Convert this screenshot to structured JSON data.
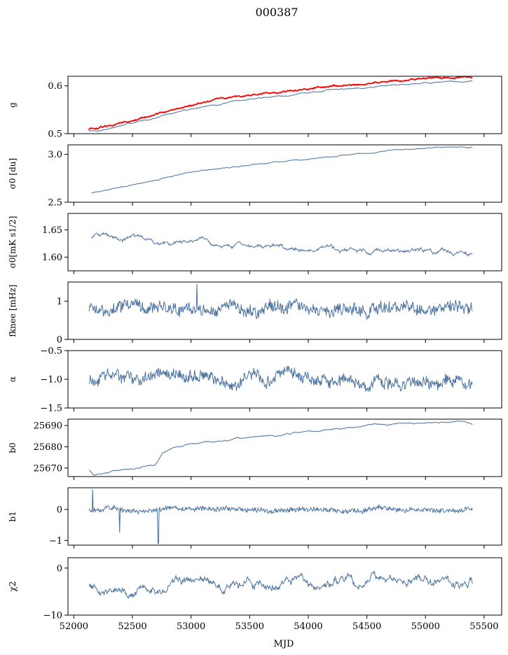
{
  "figure": {
    "title": "000387",
    "xlabel": "MJD"
  },
  "colors": {
    "series": "#4c72a0",
    "reference": "#ff0000"
  },
  "chart_data": [
    {
      "type": "line",
      "key": "g",
      "ylabel": "g",
      "ylim": [
        0.5,
        0.62
      ],
      "yticks": [
        "0.5",
        "0.6"
      ],
      "ytick_values": [
        0.5,
        0.6
      ],
      "series": [
        {
          "name": "",
          "color": "#4c72a0",
          "noise": 0.0007,
          "noise_hf": 0.0003,
          "x": [
            52125,
            52200,
            52500,
            53000,
            53500,
            54000,
            54500,
            55000,
            55400
          ],
          "y": [
            0.507,
            0.506,
            0.522,
            0.552,
            0.572,
            0.586,
            0.598,
            0.607,
            0.61
          ]
        },
        {
          "name": "",
          "color": "#ff0000",
          "noise": 0.001,
          "noise_hf": 0.0006,
          "x": [
            52125,
            52200,
            52500,
            53000,
            53500,
            54000,
            54500,
            55000,
            55400
          ],
          "y": [
            0.51,
            0.509,
            0.527,
            0.56,
            0.58,
            0.594,
            0.606,
            0.615,
            0.618
          ]
        }
      ]
    },
    {
      "type": "line",
      "key": "sigma0_du",
      "ylabel": "σ0 [du]",
      "ylim": [
        2.5,
        3.1
      ],
      "yticks": [
        "2.5",
        "3.0"
      ],
      "ytick_values": [
        2.5,
        3.0
      ],
      "series": [
        {
          "name": "",
          "color": "#4c72a0",
          "noise": 0.003,
          "noise_hf": 0.001,
          "x": [
            52150,
            52500,
            53000,
            53500,
            54000,
            54500,
            55000,
            55300,
            55400
          ],
          "y": [
            2.6,
            2.68,
            2.82,
            2.89,
            2.95,
            3.02,
            3.06,
            3.08,
            3.07
          ]
        }
      ]
    },
    {
      "type": "line",
      "key": "sigma0_mK",
      "ylabel": "σ0[mK s1/2]",
      "ylim": [
        1.575,
        1.68
      ],
      "yticks": [
        "1.60",
        "1.65"
      ],
      "ytick_values": [
        1.6,
        1.65
      ],
      "series": [
        {
          "name": "",
          "color": "#4c72a0",
          "noise": 0.002,
          "noise_hf": 0.0015,
          "x": [
            52150,
            52300,
            52600,
            53000,
            53500,
            54000,
            54500,
            55000,
            55400
          ],
          "y": [
            1.637,
            1.64,
            1.632,
            1.625,
            1.62,
            1.614,
            1.612,
            1.609,
            1.604
          ]
        }
      ]
    },
    {
      "type": "line",
      "key": "fknee",
      "ylabel": "fknee [mHz]",
      "ylim": [
        0,
        1.5
      ],
      "yticks": [
        "0",
        "1"
      ],
      "ytick_values": [
        0,
        1
      ],
      "series": [
        {
          "name": "",
          "color": "#4c72a0",
          "noise": 0.05,
          "noise_hf": 0.14,
          "x": [
            52130,
            55400
          ],
          "y": [
            0.8,
            0.82
          ]
        }
      ]
    },
    {
      "type": "line",
      "key": "alpha",
      "ylabel": "α",
      "ylim": [
        -1.5,
        -0.5
      ],
      "yticks": [
        "−1.5",
        "−1.0",
        "−0.5"
      ],
      "ytick_values": [
        -1.5,
        -1.0,
        -0.5
      ],
      "series": [
        {
          "name": "",
          "color": "#4c72a0",
          "noise": 0.04,
          "noise_hf": 0.09,
          "x": [
            52130,
            55400
          ],
          "y": [
            -1.0,
            -1.0
          ]
        }
      ]
    },
    {
      "type": "line",
      "key": "b0",
      "ylabel": "b0",
      "ylim": [
        25666,
        25693
      ],
      "yticks": [
        "25670",
        "25680",
        "25690"
      ],
      "ytick_values": [
        25670,
        25680,
        25690
      ],
      "series": [
        {
          "name": "",
          "color": "#4c72a0",
          "noise": 0.18,
          "noise_hf": 0.08,
          "x": [
            52130,
            52170,
            52300,
            52500,
            52690,
            52720,
            52760,
            53000,
            53500,
            54000,
            54500,
            55000,
            55300,
            55400
          ],
          "y": [
            25669,
            25667,
            25668,
            25669.5,
            25671.5,
            25674,
            25677.5,
            25681.5,
            25684,
            25687,
            25690,
            25691,
            25692,
            25690.5
          ]
        }
      ]
    },
    {
      "type": "line",
      "key": "b1",
      "ylabel": "b1",
      "ylim": [
        -1.15,
        0.7
      ],
      "yticks": [
        "−1",
        "0"
      ],
      "ytick_values": [
        -1,
        0
      ],
      "series": [
        {
          "name": "",
          "color": "#4c72a0",
          "noise": 0.02,
          "noise_hf": 0.07,
          "x": [
            52130,
            55400
          ],
          "y": [
            0,
            0
          ]
        }
      ]
    },
    {
      "type": "line",
      "key": "chi2",
      "ylabel": "χ2",
      "ylim": [
        -10,
        2.2
      ],
      "yticks": [
        "−10",
        "0"
      ],
      "ytick_values": [
        -10,
        0
      ],
      "series": [
        {
          "name": "",
          "color": "#4c72a0",
          "noise": 0.55,
          "noise_hf": 0.35,
          "x": [
            52130,
            52400,
            52700,
            53000,
            53500,
            54000,
            54500,
            55000,
            55400
          ],
          "y": [
            -3.5,
            -4.5,
            -4.0,
            -3.0,
            -3.5,
            -3.0,
            -2.5,
            -3.0,
            -3.0
          ]
        }
      ]
    }
  ],
  "xaxis": {
    "range": [
      51950,
      55650
    ],
    "ticks": [
      "52000",
      "52500",
      "53000",
      "53500",
      "54000",
      "54500",
      "55000",
      "55500"
    ],
    "tick_values": [
      52000,
      52500,
      53000,
      53500,
      54000,
      54500,
      55000,
      55500
    ]
  }
}
